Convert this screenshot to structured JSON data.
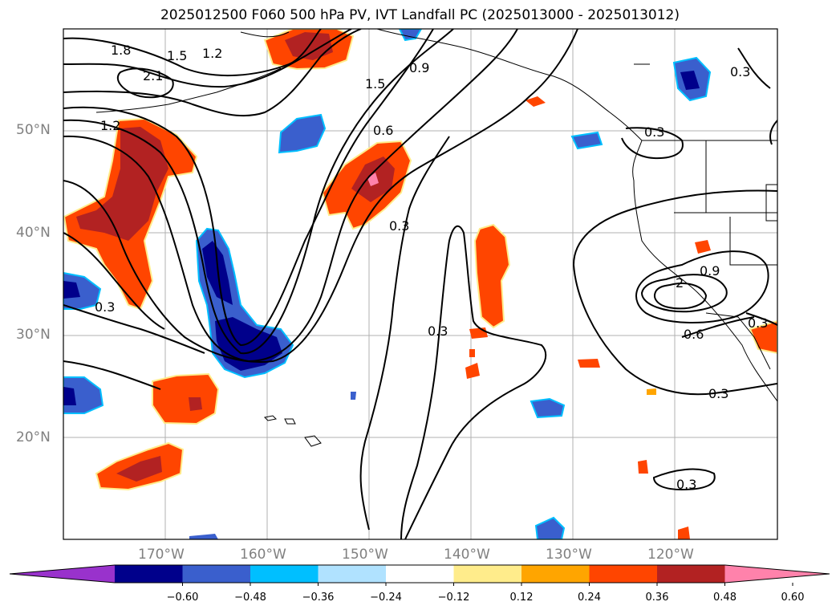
{
  "title": "2025012500 F060 500 hPa PV, IVT Landfall PC (2025013000 - 2025013012)",
  "map": {
    "lon_range": [
      -180,
      -110
    ],
    "lat_range": [
      10,
      60
    ],
    "lat_labels": [
      "50°N",
      "40°N",
      "30°N",
      "20°N"
    ],
    "lon_labels": [
      "170°W",
      "160°W",
      "150°W",
      "140°W",
      "130°W",
      "120°W"
    ],
    "gridlines": true,
    "contour_labels": [
      "1.8",
      "1.5",
      "1.2",
      "2.1",
      "1.2",
      "1.5",
      "0.9",
      "0.6",
      "0.3",
      "0.3",
      "0.3",
      "0.3",
      "0.9",
      "2",
      "0.6",
      "0.3",
      "0.3",
      "0.3",
      "0.3"
    ]
  },
  "colorbar": {
    "orientation": "horizontal",
    "extend": "both",
    "ticks": [
      "−0.60",
      "−0.48",
      "−0.36",
      "−0.24",
      "−0.12",
      "0.12",
      "0.24",
      "0.36",
      "0.48",
      "0.60"
    ],
    "colors": [
      "#9932CC",
      "#00008B",
      "#3A5FCD",
      "#00BFFF",
      "#B0E2FF",
      "#FFFFFF",
      "#FFEC8B",
      "#FFA500",
      "#FF4500",
      "#B22222",
      "#FF82AB"
    ]
  }
}
